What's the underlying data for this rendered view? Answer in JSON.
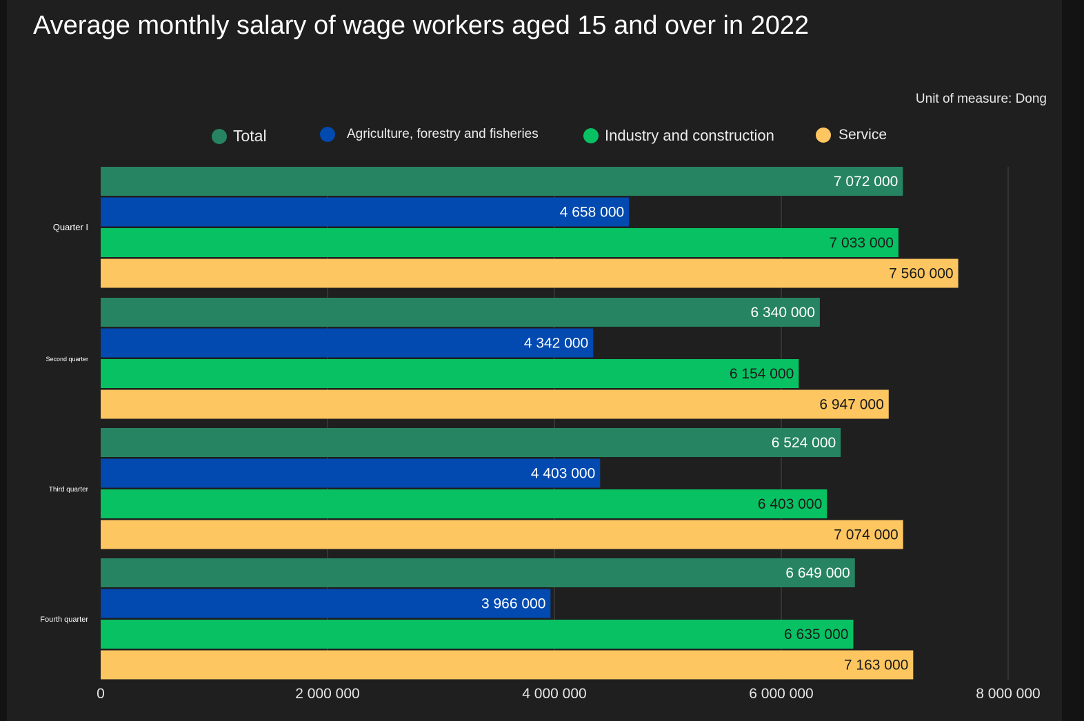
{
  "title": "Average monthly salary of wage workers aged 15 and over in 2022",
  "unit_label": "Unit of measure: Dong",
  "colors": {
    "background": "#1f1f1f",
    "grid": "#4a4a4a",
    "total": "#268462",
    "agriculture": "#0249b0",
    "industry": "#08c163",
    "service": "#fec660"
  },
  "chart_data": {
    "type": "bar",
    "orientation": "horizontal",
    "title": "Average monthly salary of wage workers aged 15 and over in 2022",
    "categories": [
      "Quarter I",
      "Second quarter",
      "Third quarter",
      "Fourth quarter"
    ],
    "series": [
      {
        "name": "Total",
        "color": "#268462",
        "values": [
          7072000,
          6340000,
          6524000,
          6649000
        ],
        "labels": [
          "7 072 000",
          "6 340 000",
          "6 524 000",
          "6 649 000"
        ]
      },
      {
        "name": "Agriculture, forestry and fisheries",
        "color": "#0249b0",
        "values": [
          4658000,
          4342000,
          4403000,
          3966000
        ],
        "labels": [
          "4 658 000",
          "4 342 000",
          "4 403 000",
          "3 966 000"
        ]
      },
      {
        "name": "Industry and construction",
        "color": "#08c163",
        "values": [
          7033000,
          6154000,
          6403000,
          6635000
        ],
        "labels": [
          "7 033 000",
          "6 154 000",
          "6 403 000",
          "6 635 000"
        ]
      },
      {
        "name": "Service",
        "color": "#fec660",
        "values": [
          7560000,
          6947000,
          7074000,
          7163000
        ],
        "labels": [
          "7 560 000",
          "6 947 000",
          "7 074 000",
          "7 163 000"
        ]
      }
    ],
    "xlim": [
      0,
      8000000
    ],
    "x_ticks": [
      0,
      2000000,
      4000000,
      6000000,
      8000000
    ],
    "x_tick_labels": [
      "0",
      "2 000 000",
      "4 000 000",
      "6 000 000",
      "8 000 000"
    ],
    "grid": true,
    "legend_position": "top-center"
  }
}
